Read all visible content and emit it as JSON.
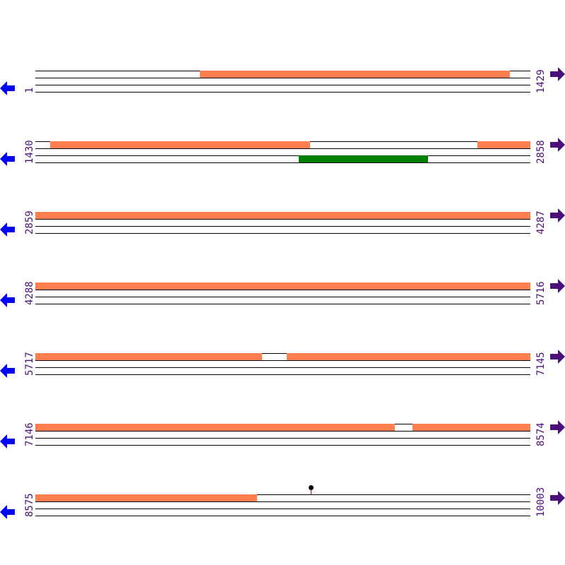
{
  "colors": {
    "feature": "#ff7f50",
    "green_feature": "#008000",
    "label": "#4b0f7a",
    "left_arrow": "#0000ff",
    "right_arrow": "#4b0f7a",
    "marker_stem": "#e00000"
  },
  "icons": {
    "left": "arrow-left-icon",
    "right": "arrow-right-icon"
  },
  "rows": [
    {
      "start": "1",
      "end": "1429",
      "features": [
        {
          "lane": 0,
          "from": 475,
          "to": 1370,
          "color": "feature"
        }
      ]
    },
    {
      "start": "1430",
      "end": "2858",
      "features": [
        {
          "lane": 0,
          "from": 1473,
          "to": 2223,
          "color": "feature"
        },
        {
          "lane": 0,
          "from": 2707,
          "to": 2858,
          "color": "feature"
        },
        {
          "lane": 1,
          "from": 2191,
          "to": 2562,
          "color": "green_feature"
        }
      ]
    },
    {
      "start": "2859",
      "end": "4287",
      "features": [
        {
          "lane": 0,
          "from": 2859,
          "to": 4287,
          "color": "feature"
        }
      ]
    },
    {
      "start": "4288",
      "end": "5716",
      "features": [
        {
          "lane": 0,
          "from": 4288,
          "to": 5716,
          "color": "feature"
        }
      ]
    },
    {
      "start": "5717",
      "end": "7145",
      "features": [
        {
          "lane": 0,
          "from": 5717,
          "to": 6370,
          "color": "feature"
        },
        {
          "lane": 0,
          "from": 6443,
          "to": 7145,
          "color": "feature"
        }
      ]
    },
    {
      "start": "7146",
      "end": "8574",
      "features": [
        {
          "lane": 0,
          "from": 7146,
          "to": 8182,
          "color": "feature"
        },
        {
          "lane": 0,
          "from": 8235,
          "to": 8574,
          "color": "feature"
        }
      ]
    },
    {
      "start": "8575",
      "end": "10003",
      "features": [
        {
          "lane": 0,
          "from": 8575,
          "to": 9214,
          "color": "feature"
        }
      ],
      "markers": [
        9371
      ]
    }
  ]
}
